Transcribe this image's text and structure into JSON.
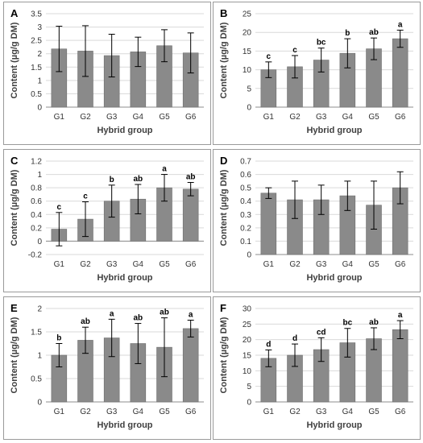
{
  "chart_data": [
    {
      "panel": "A",
      "type": "bar",
      "categories": [
        "G1",
        "G2",
        "G3",
        "G4",
        "G5",
        "G6"
      ],
      "values": [
        2.18,
        2.1,
        1.93,
        2.07,
        2.3,
        2.03
      ],
      "errors": [
        0.85,
        0.95,
        0.8,
        0.55,
        0.6,
        0.75
      ],
      "letters": [
        "",
        "",
        "",
        "",
        "",
        ""
      ],
      "ylim": [
        0,
        3.5
      ],
      "yticks": [
        "0",
        "0.5",
        "1",
        "1.5",
        "2",
        "2.5",
        "3",
        "3.5"
      ],
      "ylabel": "Content (µg/g DM)",
      "xlabel": "Hybrid group"
    },
    {
      "panel": "B",
      "type": "bar",
      "categories": [
        "G1",
        "G2",
        "G3",
        "G4",
        "G5",
        "G6"
      ],
      "values": [
        10,
        10.8,
        12.6,
        14.4,
        15.6,
        18.3
      ],
      "errors": [
        2.1,
        3.0,
        3.2,
        3.9,
        2.9,
        2.3
      ],
      "letters": [
        "c",
        "c",
        "bc",
        "b",
        "ab",
        "a"
      ],
      "ylim": [
        0,
        25
      ],
      "yticks": [
        "0",
        "5",
        "10",
        "15",
        "20",
        "25"
      ],
      "ylabel": "Content (µg/g DM)",
      "xlabel": "Hybrid group"
    },
    {
      "panel": "C",
      "type": "bar",
      "categories": [
        "G1",
        "G2",
        "G3",
        "G4",
        "G5",
        "G6"
      ],
      "values": [
        0.18,
        0.33,
        0.6,
        0.63,
        0.8,
        0.78
      ],
      "errors": [
        0.25,
        0.26,
        0.24,
        0.22,
        0.2,
        0.1
      ],
      "letters": [
        "c",
        "c",
        "b",
        "ab",
        "a",
        "ab"
      ],
      "ylim": [
        -0.2,
        1.2
      ],
      "yticks": [
        "-0.2",
        "0",
        "0.2",
        "0.4",
        "0.6",
        "0.8",
        "1",
        "1.2"
      ],
      "ylabel": "Content (µg/g DM)",
      "xlabel": "Hybrid group"
    },
    {
      "panel": "D",
      "type": "bar",
      "categories": [
        "G1",
        "G2",
        "G3",
        "G4",
        "G5",
        "G6"
      ],
      "values": [
        0.46,
        0.41,
        0.41,
        0.44,
        0.37,
        0.5
      ],
      "errors": [
        0.04,
        0.14,
        0.11,
        0.11,
        0.18,
        0.12
      ],
      "letters": [
        "",
        "",
        "",
        "",
        "",
        ""
      ],
      "ylim": [
        0,
        0.7
      ],
      "yticks": [
        "0",
        "0.1",
        "0.2",
        "0.3",
        "0.4",
        "0.5",
        "0.6",
        "0.7"
      ],
      "ylabel": "Content (µg/g DM)",
      "xlabel": "Hybrid group"
    },
    {
      "panel": "E",
      "type": "bar",
      "categories": [
        "G1",
        "G2",
        "G3",
        "G4",
        "G5",
        "G6"
      ],
      "values": [
        1.0,
        1.32,
        1.37,
        1.25,
        1.17,
        1.57
      ],
      "errors": [
        0.25,
        0.28,
        0.4,
        0.43,
        0.63,
        0.18
      ],
      "letters": [
        "b",
        "ab",
        "a",
        "ab",
        "ab",
        "a"
      ],
      "ylim": [
        0,
        2
      ],
      "yticks": [
        "0",
        "0.5",
        "1",
        "1.5",
        "2"
      ],
      "ylabel": "Content (µg/g DM)",
      "xlabel": "Hybrid group"
    },
    {
      "panel": "F",
      "type": "bar",
      "categories": [
        "G1",
        "G2",
        "G3",
        "G4",
        "G5",
        "G6"
      ],
      "values": [
        14,
        15,
        16.8,
        19,
        20.3,
        23.2
      ],
      "errors": [
        2.7,
        3.6,
        3.8,
        4.6,
        3.5,
        2.9
      ],
      "letters": [
        "d",
        "d",
        "cd",
        "bc",
        "ab",
        "a"
      ],
      "ylim": [
        0,
        30
      ],
      "yticks": [
        "0",
        "5",
        "10",
        "15",
        "20",
        "25",
        "30"
      ],
      "ylabel": "Content (µg/g DM)",
      "xlabel": "Hybrid group"
    }
  ]
}
